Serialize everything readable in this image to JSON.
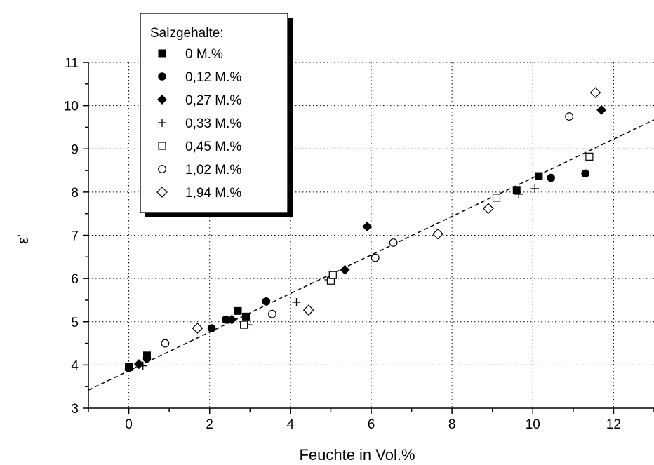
{
  "chart_data": {
    "type": "scatter",
    "xlabel": "Feuchte in Vol.%",
    "ylabel": "ε'",
    "xlim": [
      -1,
      13
    ],
    "ylim": [
      3,
      11
    ],
    "x_ticks": [
      "0",
      "2",
      "4",
      "6",
      "8",
      "10",
      "12"
    ],
    "y_ticks": [
      "3",
      "4",
      "5",
      "6",
      "7",
      "8",
      "9",
      "10",
      "11"
    ],
    "grid": true,
    "grid_style": "dotted",
    "legend": {
      "title": "Salzgehalte:",
      "placement": "top-left"
    },
    "series": [
      {
        "name": "0 M.%",
        "marker": "filled-square",
        "x": [
          0,
          0.45,
          2.7,
          2.9,
          9.6,
          10.15
        ],
        "y": [
          3.95,
          4.22,
          5.25,
          5.12,
          8.05,
          8.37
        ]
      },
      {
        "name": "0,12 M.%",
        "marker": "filled-circle",
        "x": [
          0,
          0.45,
          2.05,
          2.4,
          3.4,
          10.45,
          11.3
        ],
        "y": [
          3.93,
          4.15,
          4.85,
          5.05,
          5.47,
          8.33,
          8.43
        ]
      },
      {
        "name": "0,27 M.%",
        "marker": "filled-diamond",
        "x": [
          0.25,
          2.55,
          5.35,
          5.9,
          11.7
        ],
        "y": [
          4.02,
          5.05,
          6.2,
          7.2,
          9.9
        ]
      },
      {
        "name": "0,33 M.%",
        "marker": "plus",
        "x": [
          0.35,
          2.95,
          4.15,
          4.95,
          9.65,
          10.05
        ],
        "y": [
          3.98,
          4.93,
          5.45,
          5.97,
          7.95,
          8.08
        ]
      },
      {
        "name": "0,45 M.%",
        "marker": "open-square",
        "x": [
          2.85,
          5.0,
          5.05,
          9.1,
          11.4
        ],
        "y": [
          4.93,
          5.95,
          6.08,
          7.87,
          8.82
        ]
      },
      {
        "name": "1,02 M.%",
        "marker": "open-circle",
        "x": [
          0.9,
          3.55,
          6.1,
          6.55,
          10.9
        ],
        "y": [
          4.5,
          5.18,
          6.48,
          6.83,
          9.75
        ]
      },
      {
        "name": "1,94 M.%",
        "marker": "open-diamond",
        "x": [
          1.7,
          4.45,
          7.65,
          8.9,
          11.55
        ],
        "y": [
          4.85,
          5.27,
          7.03,
          7.62,
          10.3
        ]
      }
    ],
    "trendline": {
      "style": "dashed",
      "x": [
        -1,
        13
      ],
      "y": [
        3.42,
        9.67
      ]
    },
    "colors": {
      "markers": "#000000",
      "grid": "#000000",
      "background": "#ffffff"
    }
  }
}
